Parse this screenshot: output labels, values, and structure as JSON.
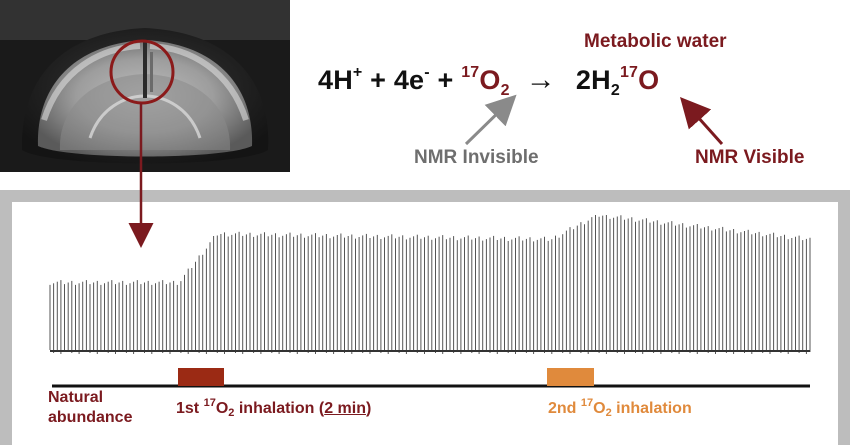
{
  "equation": {
    "reactant_1": "4H",
    "reactant_1_sup": "+",
    "plus_1": " + ",
    "reactant_2": "4e",
    "reactant_2_sup": "-",
    "plus_2": " + ",
    "o2_isotope": "17",
    "o2_symbol": "O",
    "o2_sub": "2",
    "arrow": "→",
    "product_coef": "2H",
    "product_sub": "2",
    "product_isotope": "17",
    "product_symbol": "O"
  },
  "labels": {
    "metabolic_water": "Metabolic water",
    "nmr_invisible": "NMR Invisible",
    "nmr_visible": "NMR Visible",
    "natural_line1": "Natural",
    "natural_line2": "abundance",
    "first_prefix": "1st ",
    "first_isotope": "17",
    "first_symbol": "O",
    "first_sub": "2",
    "first_suffix": " inhalation (",
    "first_duration": "2 min",
    "first_close": ")",
    "second_prefix": "2nd ",
    "second_isotope": "17",
    "second_symbol": "O",
    "second_sub": "2",
    "second_suffix": " inhalation"
  },
  "colors": {
    "accent": "#7b1a1f",
    "grey_text": "#6e6e6e",
    "panel_border": "#bdbdbd",
    "signal": "#555555",
    "first_bar": "#9b2a14",
    "second_bar": "#e08a3c"
  },
  "signal": {
    "n_lines": 210,
    "baseline_level": 0.5,
    "plateau_level": 0.86,
    "second_peak_level": 1.0,
    "final_level": 0.82,
    "first_rise_fraction": [
      0.17,
      0.22
    ],
    "second_rise_fraction": [
      0.66,
      0.72
    ]
  }
}
